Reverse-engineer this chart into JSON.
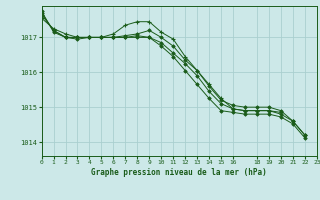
{
  "title": "Graphe pression niveau de la mer (hPa)",
  "bg_color": "#cce8e8",
  "grid_color": "#aacfcf",
  "line_color": "#1a5c1a",
  "xlim": [
    0,
    23
  ],
  "ylim": [
    1013.6,
    1017.9
  ],
  "yticks": [
    1014,
    1015,
    1016,
    1017
  ],
  "xticks": [
    0,
    1,
    2,
    3,
    4,
    5,
    6,
    7,
    8,
    9,
    10,
    11,
    12,
    13,
    14,
    15,
    16,
    18,
    19,
    20,
    21,
    22,
    23
  ],
  "xtick_labels": [
    "0",
    "1",
    "2",
    "3",
    "4",
    "5",
    "6",
    "7",
    "8",
    "9",
    "10",
    "11",
    "12",
    "13",
    "14",
    "15",
    "16",
    "18",
    "19",
    "20",
    "21",
    "22",
    "23"
  ],
  "series": [
    {
      "x": [
        0,
        1,
        2,
        3,
        4,
        5,
        6,
        7,
        8,
        9,
        10,
        11,
        12,
        13,
        14,
        15,
        16,
        17,
        18,
        19,
        20
      ],
      "y": [
        1017.55,
        1017.25,
        1017.1,
        1017.0,
        1017.0,
        1017.0,
        1017.1,
        1017.35,
        1017.45,
        1017.45,
        1017.15,
        1016.95,
        1016.45,
        1016.05,
        1015.65,
        1015.25,
        1014.95,
        1014.9,
        1014.9,
        1014.9,
        1014.85
      ],
      "marker": "+"
    },
    {
      "x": [
        0,
        1,
        2,
        3,
        4,
        5,
        6,
        7,
        8,
        9,
        10,
        11,
        12,
        13,
        14,
        15,
        16,
        17,
        18,
        19,
        20,
        21,
        22
      ],
      "y": [
        1017.65,
        1017.2,
        1017.0,
        1017.0,
        1017.0,
        1017.0,
        1017.0,
        1017.05,
        1017.1,
        1017.2,
        1017.0,
        1016.75,
        1016.35,
        1016.05,
        1015.6,
        1015.2,
        1015.05,
        1015.0,
        1015.0,
        1015.0,
        1014.9,
        1014.6,
        1014.2
      ],
      "marker": "D"
    },
    {
      "x": [
        0,
        1,
        2,
        3,
        4,
        5,
        6,
        7,
        8,
        9,
        10,
        11,
        12,
        13,
        14,
        15,
        16,
        17,
        18,
        19,
        20,
        21,
        22
      ],
      "y": [
        1017.7,
        1017.2,
        1017.0,
        1017.0,
        1017.0,
        1017.0,
        1017.0,
        1017.0,
        1017.05,
        1017.0,
        1016.85,
        1016.55,
        1016.25,
        1015.9,
        1015.45,
        1015.1,
        1014.95,
        1014.9,
        1014.9,
        1014.9,
        1014.8,
        1014.6,
        1014.2
      ],
      "marker": "D"
    },
    {
      "x": [
        0,
        1,
        2,
        3,
        4,
        5,
        6,
        7,
        8,
        9,
        10,
        11,
        12,
        13,
        14,
        15,
        16,
        17,
        18,
        19,
        20,
        21,
        22
      ],
      "y": [
        1017.75,
        1017.15,
        1017.0,
        1016.95,
        1017.0,
        1017.0,
        1017.0,
        1017.0,
        1017.0,
        1017.0,
        1016.75,
        1016.45,
        1016.05,
        1015.65,
        1015.25,
        1014.9,
        1014.85,
        1014.8,
        1014.8,
        1014.8,
        1014.72,
        1014.52,
        1014.12
      ],
      "marker": "D"
    }
  ]
}
